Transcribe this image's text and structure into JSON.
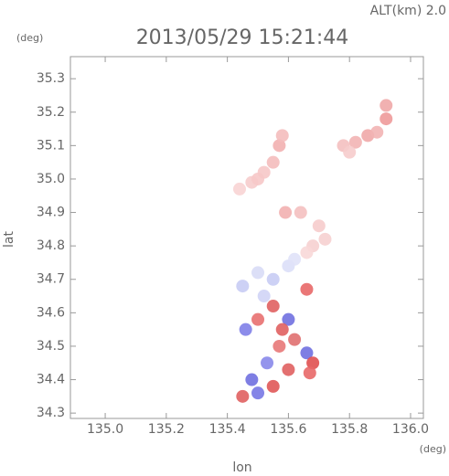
{
  "chart_data": {
    "type": "scatter",
    "title": "2013/05/29 15:21:44",
    "subtitle": "ALT(km) 2.0",
    "y_unit": "(deg)",
    "x_unit": "(deg)",
    "xlabel": "lon",
    "ylabel": "lat",
    "xlim": [
      134.886,
      136.042
    ],
    "ylim": [
      34.284,
      35.366
    ],
    "xticks": [
      {
        "value": 135.0,
        "label": "135.0"
      },
      135.2,
      135.4,
      135.6,
      135.8,
      {
        "value": 136.0,
        "label": "136.0"
      }
    ],
    "yticks": [
      34.3,
      34.4,
      34.5,
      34.6,
      34.7,
      34.8,
      34.9,
      {
        "value": 35.0,
        "label": "35.0"
      },
      35.1,
      35.2,
      35.3
    ],
    "x": [
      135.55,
      135.52,
      135.48,
      135.44,
      135.57,
      135.58,
      135.5,
      135.78,
      135.82,
      135.86,
      135.89,
      135.92,
      135.92,
      135.8,
      135.59,
      135.64,
      135.7,
      135.72,
      135.68,
      135.66,
      135.5,
      135.55,
      135.6,
      135.62,
      135.45,
      135.52,
      135.55,
      135.6,
      135.5,
      135.58,
      135.46,
      135.62,
      135.66,
      135.68,
      135.57,
      135.53,
      135.6,
      135.48,
      135.55,
      135.45,
      135.5,
      135.67,
      135.66
    ],
    "y": [
      35.05,
      35.02,
      34.99,
      34.97,
      35.1,
      35.13,
      35.0,
      35.1,
      35.11,
      35.13,
      35.14,
      35.18,
      35.22,
      35.08,
      34.9,
      34.9,
      34.86,
      34.82,
      34.8,
      34.78,
      34.72,
      34.7,
      34.74,
      34.76,
      34.68,
      34.65,
      34.62,
      34.58,
      34.58,
      34.55,
      34.55,
      34.52,
      34.48,
      34.45,
      34.5,
      34.45,
      34.43,
      34.4,
      34.38,
      34.35,
      34.36,
      34.42,
      34.67
    ],
    "colors": [
      "#f4bcbc",
      "#f6c8c8",
      "#f6cccc",
      "#f8d4d4",
      "#f2b0b0",
      "#f4bcbc",
      "#f6c8c8",
      "#f4c0c0",
      "#f2b4b4",
      "#f0a8a8",
      "#f2b4b4",
      "#ee9a9a",
      "#f0a8a8",
      "#f6cccc",
      "#f2b0b0",
      "#f4c0c0",
      "#f6cccc",
      "#f6d0d0",
      "#f6d0d0",
      "#f8d8d8",
      "#d8dcf6",
      "#c8ccf4",
      "#dcdff8",
      "#e0e2f8",
      "#c8ccf4",
      "#d0d4f6",
      "#e06060",
      "#7070e0",
      "#e87070",
      "#e06060",
      "#8080e8",
      "#e07070",
      "#7070e0",
      "#e05050",
      "#e87878",
      "#8888ea",
      "#e06060",
      "#7070e0",
      "#e05858",
      "#e06060",
      "#7878e4",
      "#e86868",
      "#e86868"
    ],
    "grid": false
  }
}
